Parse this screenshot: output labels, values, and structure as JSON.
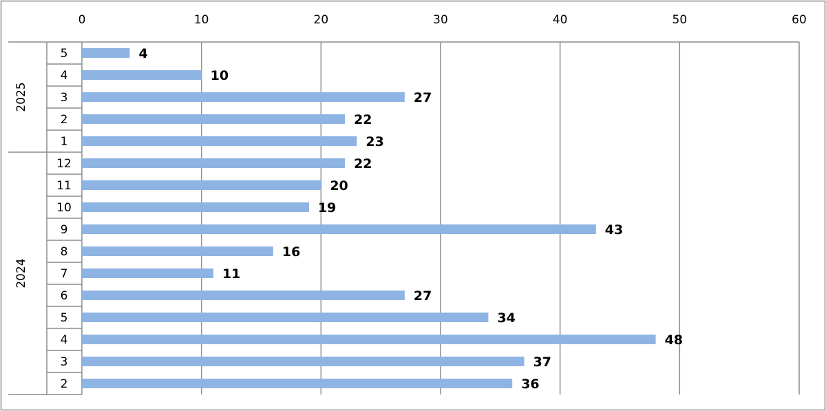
{
  "chart_data": {
    "type": "bar",
    "orientation": "horizontal",
    "x_ticks": [
      "0",
      "10",
      "20",
      "30",
      "40",
      "50",
      "60"
    ],
    "xlim": [
      0,
      60
    ],
    "grid": true,
    "bar_color": "#8EB4E3",
    "groups": [
      {
        "label": "2025",
        "months": [
          "5",
          "4",
          "3",
          "2",
          "1"
        ]
      },
      {
        "label": "2024",
        "months": [
          "12",
          "11",
          "10",
          "9",
          "8",
          "7",
          "6",
          "5",
          "4",
          "3",
          "2"
        ]
      }
    ],
    "categories": [
      "2025-5",
      "2025-4",
      "2025-3",
      "2025-2",
      "2025-1",
      "2024-12",
      "2024-11",
      "2024-10",
      "2024-9",
      "2024-8",
      "2024-7",
      "2024-6",
      "2024-5",
      "2024-4",
      "2024-3",
      "2024-2"
    ],
    "values": [
      4,
      10,
      27,
      22,
      23,
      22,
      20,
      19,
      43,
      16,
      11,
      27,
      34,
      48,
      37,
      36
    ],
    "data_labels": [
      "4",
      "10",
      "27",
      "22",
      "23",
      "22",
      "20",
      "19",
      "43",
      "16",
      "11",
      "27",
      "34",
      "48",
      "37",
      "36"
    ]
  }
}
